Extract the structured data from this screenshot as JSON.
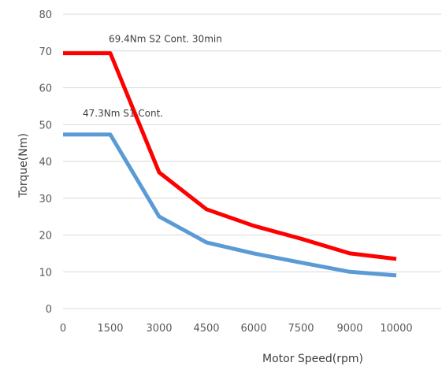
{
  "chart_data": {
    "type": "line",
    "title": "",
    "xlabel": "Motor Speed(rpm)",
    "ylabel": "Torque(Nm)",
    "x_categories": [
      "0",
      "1500",
      "3000",
      "4500",
      "6000",
      "7500",
      "9000",
      "10000"
    ],
    "x": [
      0,
      1500,
      3000,
      4500,
      6000,
      7500,
      9000,
      10000
    ],
    "ylim": [
      0,
      80
    ],
    "yticks": [
      0,
      10,
      20,
      30,
      40,
      50,
      60,
      70,
      80
    ],
    "grid": "horizontal",
    "legend": "none",
    "series": [
      {
        "color": "#ff0000",
        "values": [
          69.4,
          69.4,
          37.0,
          27.0,
          22.5,
          19.0,
          15.0,
          13.5
        ]
      },
      {
        "color": "#5b9bd5",
        "values": [
          47.3,
          47.3,
          25.0,
          18.0,
          15.0,
          12.5,
          10.0,
          9.0
        ]
      }
    ],
    "annotations": [
      {
        "text": "69.4Nm S2 Cont. 30min",
        "x": 1500,
        "y": 69.4,
        "series": 0
      },
      {
        "text": "47.3Nm S1 Cont.",
        "x": 1500,
        "y": 47.3,
        "series": 1
      }
    ]
  }
}
